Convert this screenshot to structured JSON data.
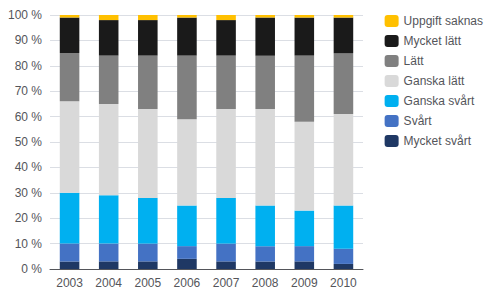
{
  "chart_data": {
    "type": "bar",
    "stacked": true,
    "categories": [
      "2003",
      "2004",
      "2005",
      "2006",
      "2007",
      "2008",
      "2009",
      "2010"
    ],
    "series": [
      {
        "name": "Mycket svårt",
        "color": "#1f3864",
        "values": [
          3,
          3,
          3,
          4,
          3,
          3,
          3,
          2
        ]
      },
      {
        "name": "Svårt",
        "color": "#4472c4",
        "values": [
          7,
          7,
          7,
          5,
          7,
          6,
          6,
          6
        ]
      },
      {
        "name": "Ganska svårt",
        "color": "#00b0f0",
        "values": [
          20,
          19,
          18,
          16,
          18,
          16,
          14,
          17
        ]
      },
      {
        "name": "Ganska lätt",
        "color": "#d9d9d9",
        "values": [
          36,
          36,
          35,
          34,
          35,
          38,
          35,
          36
        ]
      },
      {
        "name": "Lätt",
        "color": "#808080",
        "values": [
          19,
          19,
          21,
          25,
          21,
          21,
          26,
          24
        ]
      },
      {
        "name": "Mycket lätt",
        "color": "#1a1a1a",
        "values": [
          14,
          14,
          14,
          15,
          14,
          15,
          15,
          14
        ]
      },
      {
        "name": "Uppgift saknas",
        "color": "#ffc000",
        "values": [
          1,
          2,
          2,
          1,
          2,
          1,
          1,
          1
        ]
      }
    ],
    "ylim": [
      0,
      100
    ],
    "yticks": [
      {
        "value": 0,
        "label": "0 %"
      },
      {
        "value": 10,
        "label": "10 %"
      },
      {
        "value": 20,
        "label": "20 %"
      },
      {
        "value": 30,
        "label": "30 %"
      },
      {
        "value": 40,
        "label": "40 %"
      },
      {
        "value": 50,
        "label": "50 %"
      },
      {
        "value": 60,
        "label": "60 %"
      },
      {
        "value": 70,
        "label": "70 %"
      },
      {
        "value": 80,
        "label": "80 %"
      },
      {
        "value": 90,
        "label": "90 %"
      },
      {
        "value": 100,
        "label": "100 %"
      }
    ],
    "grid": true,
    "legend": "right"
  }
}
